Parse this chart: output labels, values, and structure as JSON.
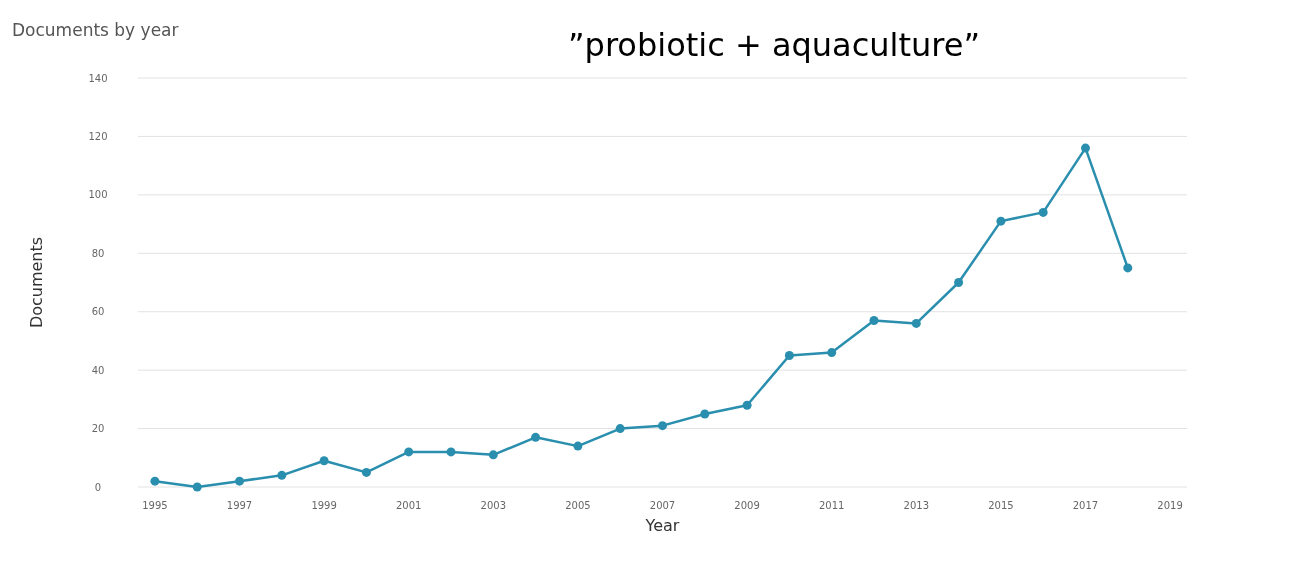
{
  "chart_data": {
    "type": "line",
    "title": "Documents by year",
    "subtitle": "”probiotic + aquaculture”",
    "xlabel": "Year",
    "ylabel": "Documents",
    "x": [
      1995,
      1996,
      1997,
      1998,
      1999,
      2000,
      2001,
      2002,
      2003,
      2004,
      2005,
      2006,
      2007,
      2008,
      2009,
      2010,
      2011,
      2012,
      2013,
      2014,
      2015,
      2016,
      2017,
      2018
    ],
    "series": [
      {
        "color": "#2a8fae",
        "values": [
          2,
          0,
          2,
          4,
          9,
          5,
          12,
          12,
          11,
          17,
          14,
          20,
          21,
          25,
          28,
          45,
          46,
          57,
          56,
          70,
          91,
          94,
          116,
          75
        ]
      }
    ],
    "xlim": [
      1994.6,
      2019.4
    ],
    "xticks": [
      1995,
      1997,
      1999,
      2001,
      2003,
      2005,
      2007,
      2009,
      2011,
      2013,
      2015,
      2017,
      2019
    ],
    "ylim": [
      0,
      140
    ],
    "yticks": [
      0,
      20,
      40,
      60,
      80,
      100,
      120,
      140
    ],
    "grid": "y",
    "marker": "circle",
    "line_style": "solid"
  }
}
